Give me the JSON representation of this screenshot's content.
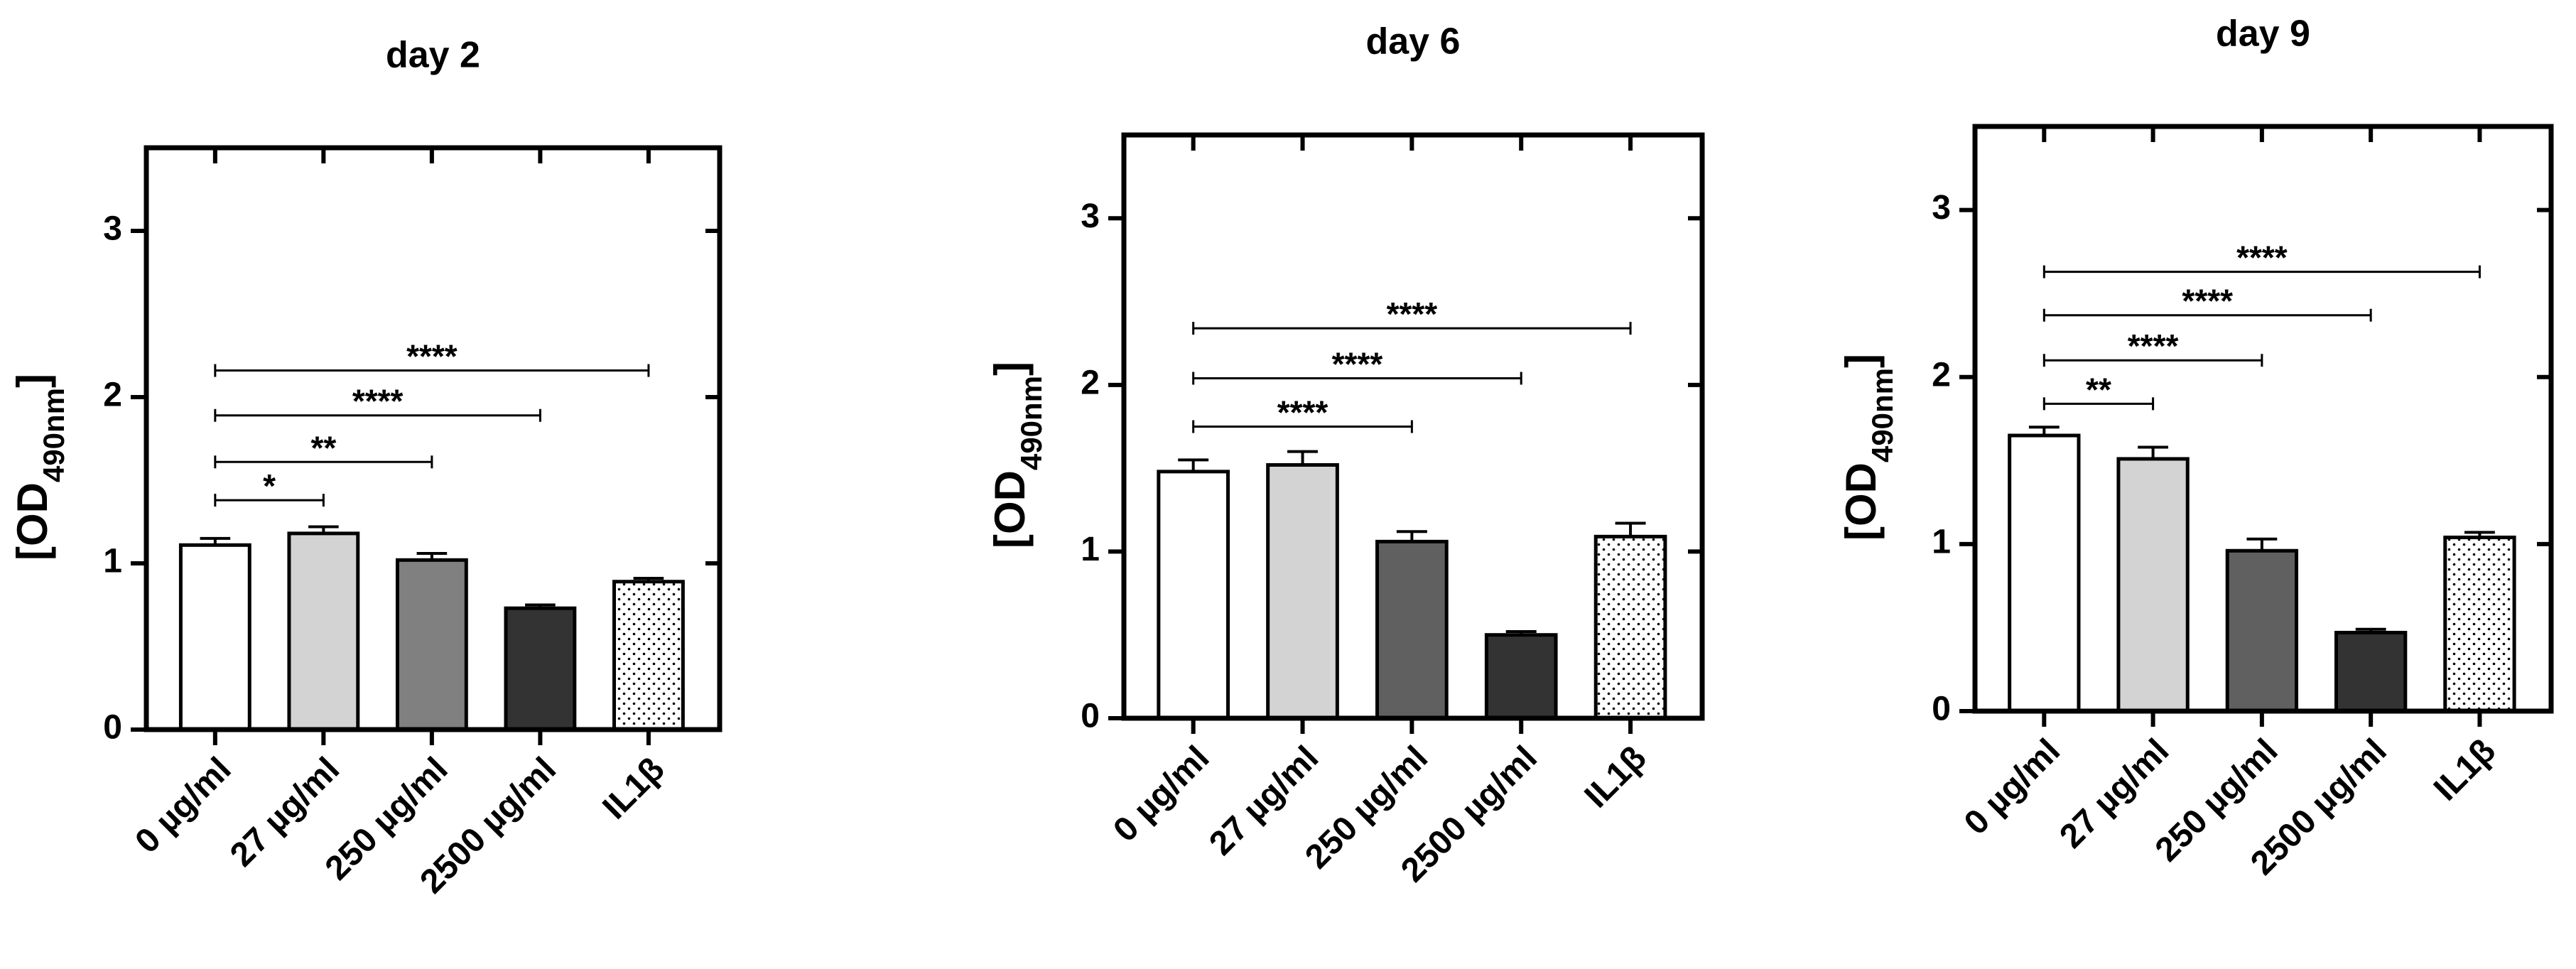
{
  "chart_data": [
    {
      "type": "bar",
      "title": "day 2",
      "ylabel": [
        "[OD",
        "490nm",
        "]"
      ],
      "categories": [
        "0 µg/ml",
        "27 µg/ml",
        "250 µg/ml",
        "2500 µg/ml",
        "IL1β"
      ],
      "values": [
        1.11,
        1.18,
        1.02,
        0.73,
        0.89
      ],
      "errors": [
        0.04,
        0.04,
        0.04,
        0.02,
        0.02
      ],
      "colors": [
        "#ffffff",
        "#d3d3d3",
        "#808080",
        "#333333",
        "#ffffff"
      ],
      "dotted": [
        false,
        false,
        false,
        false,
        true
      ],
      "ylim": [
        0,
        3.5
      ],
      "yticks": [
        0,
        1,
        2,
        3
      ],
      "comparisons": [
        {
          "from": 0,
          "to": 1,
          "y": 1.38,
          "label": "*"
        },
        {
          "from": 0,
          "to": 2,
          "y": 1.61,
          "label": "**"
        },
        {
          "from": 0,
          "to": 3,
          "y": 1.89,
          "label": "****"
        },
        {
          "from": 0,
          "to": 4,
          "y": 2.16,
          "label": "****"
        }
      ]
    },
    {
      "type": "bar",
      "title": "day 6",
      "ylabel": [
        "[OD",
        "490nm",
        "]"
      ],
      "categories": [
        "0 µg/ml",
        "27 µg/ml",
        "250 µg/ml",
        "2500 µg/ml",
        "IL1β"
      ],
      "values": [
        1.48,
        1.52,
        1.06,
        0.5,
        1.09
      ],
      "errors": [
        0.07,
        0.08,
        0.06,
        0.02,
        0.08
      ],
      "colors": [
        "#ffffff",
        "#d3d3d3",
        "#606060",
        "#333333",
        "#ffffff"
      ],
      "dotted": [
        false,
        false,
        false,
        false,
        true
      ],
      "ylim": [
        0,
        3.5
      ],
      "yticks": [
        0,
        1,
        2,
        3
      ],
      "comparisons": [
        {
          "from": 0,
          "to": 2,
          "y": 1.75,
          "label": "****"
        },
        {
          "from": 0,
          "to": 3,
          "y": 2.04,
          "label": "****"
        },
        {
          "from": 0,
          "to": 4,
          "y": 2.34,
          "label": "****"
        }
      ]
    },
    {
      "type": "bar",
      "title": "day 9",
      "ylabel": [
        "[OD",
        "490nm",
        "]"
      ],
      "categories": [
        "0 µg/ml",
        "27 µg/ml",
        "250 µg/ml",
        "2500 µg/ml",
        "IL1β"
      ],
      "values": [
        1.65,
        1.51,
        0.96,
        0.47,
        1.04
      ],
      "errors": [
        0.05,
        0.07,
        0.07,
        0.02,
        0.03
      ],
      "colors": [
        "#ffffff",
        "#d3d3d3",
        "#606060",
        "#333333",
        "#ffffff"
      ],
      "dotted": [
        false,
        false,
        false,
        false,
        true
      ],
      "ylim": [
        0,
        3.5
      ],
      "yticks": [
        0,
        1,
        2,
        3
      ],
      "comparisons": [
        {
          "from": 0,
          "to": 1,
          "y": 1.84,
          "label": "**"
        },
        {
          "from": 0,
          "to": 2,
          "y": 2.1,
          "label": "****"
        },
        {
          "from": 0,
          "to": 3,
          "y": 2.37,
          "label": "****"
        },
        {
          "from": 0,
          "to": 4,
          "y": 2.63,
          "label": "****"
        }
      ]
    }
  ]
}
